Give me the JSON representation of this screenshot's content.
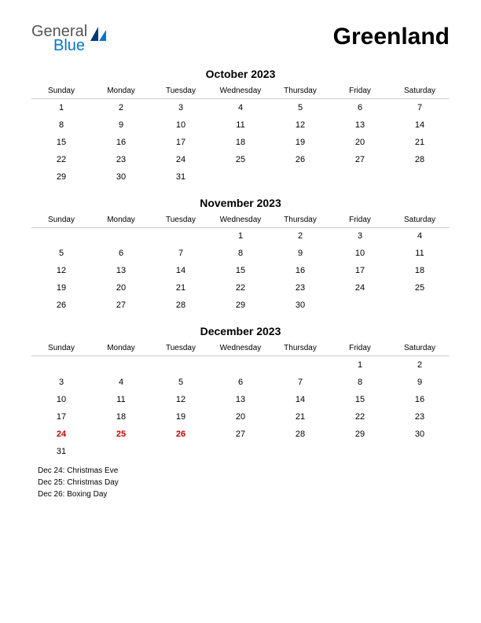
{
  "logo": {
    "general": "General",
    "blue": "Blue"
  },
  "country": "Greenland",
  "day_headers": [
    "Sunday",
    "Monday",
    "Tuesday",
    "Wednesday",
    "Thursday",
    "Friday",
    "Saturday"
  ],
  "months": [
    {
      "title": "October 2023",
      "weeks": [
        [
          {
            "d": "1"
          },
          {
            "d": "2"
          },
          {
            "d": "3"
          },
          {
            "d": "4"
          },
          {
            "d": "5"
          },
          {
            "d": "6"
          },
          {
            "d": "7"
          }
        ],
        [
          {
            "d": "8"
          },
          {
            "d": "9"
          },
          {
            "d": "10"
          },
          {
            "d": "11"
          },
          {
            "d": "12"
          },
          {
            "d": "13"
          },
          {
            "d": "14"
          }
        ],
        [
          {
            "d": "15"
          },
          {
            "d": "16"
          },
          {
            "d": "17"
          },
          {
            "d": "18"
          },
          {
            "d": "19"
          },
          {
            "d": "20"
          },
          {
            "d": "21"
          }
        ],
        [
          {
            "d": "22"
          },
          {
            "d": "23"
          },
          {
            "d": "24"
          },
          {
            "d": "25"
          },
          {
            "d": "26"
          },
          {
            "d": "27"
          },
          {
            "d": "28"
          }
        ],
        [
          {
            "d": "29"
          },
          {
            "d": "30"
          },
          {
            "d": "31"
          },
          {
            "d": ""
          },
          {
            "d": ""
          },
          {
            "d": ""
          },
          {
            "d": ""
          }
        ]
      ],
      "holidays": []
    },
    {
      "title": "November 2023",
      "weeks": [
        [
          {
            "d": ""
          },
          {
            "d": ""
          },
          {
            "d": ""
          },
          {
            "d": "1"
          },
          {
            "d": "2"
          },
          {
            "d": "3"
          },
          {
            "d": "4"
          }
        ],
        [
          {
            "d": "5"
          },
          {
            "d": "6"
          },
          {
            "d": "7"
          },
          {
            "d": "8"
          },
          {
            "d": "9"
          },
          {
            "d": "10"
          },
          {
            "d": "11"
          }
        ],
        [
          {
            "d": "12"
          },
          {
            "d": "13"
          },
          {
            "d": "14"
          },
          {
            "d": "15"
          },
          {
            "d": "16"
          },
          {
            "d": "17"
          },
          {
            "d": "18"
          }
        ],
        [
          {
            "d": "19"
          },
          {
            "d": "20"
          },
          {
            "d": "21"
          },
          {
            "d": "22"
          },
          {
            "d": "23"
          },
          {
            "d": "24"
          },
          {
            "d": "25"
          }
        ],
        [
          {
            "d": "26"
          },
          {
            "d": "27"
          },
          {
            "d": "28"
          },
          {
            "d": "29"
          },
          {
            "d": "30"
          },
          {
            "d": ""
          },
          {
            "d": ""
          }
        ]
      ],
      "holidays": []
    },
    {
      "title": "December 2023",
      "weeks": [
        [
          {
            "d": ""
          },
          {
            "d": ""
          },
          {
            "d": ""
          },
          {
            "d": ""
          },
          {
            "d": ""
          },
          {
            "d": "1"
          },
          {
            "d": "2"
          }
        ],
        [
          {
            "d": "3"
          },
          {
            "d": "4"
          },
          {
            "d": "5"
          },
          {
            "d": "6"
          },
          {
            "d": "7"
          },
          {
            "d": "8"
          },
          {
            "d": "9"
          }
        ],
        [
          {
            "d": "10"
          },
          {
            "d": "11"
          },
          {
            "d": "12"
          },
          {
            "d": "13"
          },
          {
            "d": "14"
          },
          {
            "d": "15"
          },
          {
            "d": "16"
          }
        ],
        [
          {
            "d": "17"
          },
          {
            "d": "18"
          },
          {
            "d": "19"
          },
          {
            "d": "20"
          },
          {
            "d": "21"
          },
          {
            "d": "22"
          },
          {
            "d": "23"
          }
        ],
        [
          {
            "d": "24",
            "h": true
          },
          {
            "d": "25",
            "h": true
          },
          {
            "d": "26",
            "h": true
          },
          {
            "d": "27"
          },
          {
            "d": "28"
          },
          {
            "d": "29"
          },
          {
            "d": "30"
          }
        ],
        [
          {
            "d": "31"
          },
          {
            "d": ""
          },
          {
            "d": ""
          },
          {
            "d": ""
          },
          {
            "d": ""
          },
          {
            "d": ""
          },
          {
            "d": ""
          }
        ]
      ],
      "holidays": [
        "Dec 24: Christmas Eve",
        "Dec 25: Christmas Day",
        "Dec 26: Boxing Day"
      ]
    }
  ],
  "colors": {
    "holiday_text": "#cc0000",
    "header_border": "#cccccc",
    "logo_blue": "#0077cc",
    "logo_gray": "#555555"
  }
}
